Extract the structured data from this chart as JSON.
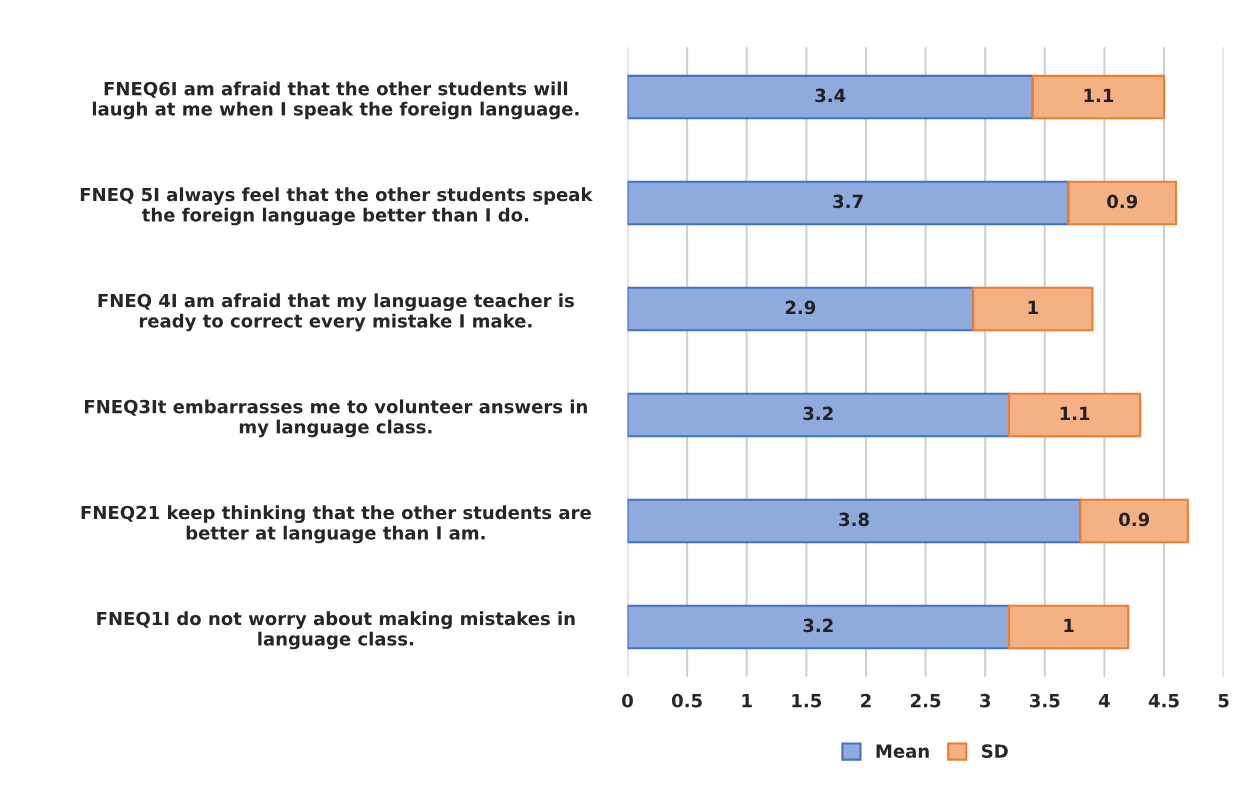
{
  "chart_data": {
    "type": "bar",
    "orientation": "horizontal",
    "stacked": true,
    "categories": [
      "FNEQ6I am afraid that the other students will\nlaugh at me when I speak the foreign language.",
      "FNEQ 5I always feel that the other students speak\nthe foreign language better than I do.",
      "FNEQ 4I am afraid that my language teacher is\nready to correct every mistake I make.",
      "FNEQ3It embarrasses me to volunteer answers in\nmy language class.",
      "FNEQ21 keep thinking that the other students are\nbetter at language than I am.",
      "FNEQ1I do not worry about making mistakes in\nlanguage class."
    ],
    "series": [
      {
        "name": "Mean",
        "color": "#8faadc",
        "values": [
          3.4,
          3.7,
          2.9,
          3.2,
          3.8,
          3.2
        ]
      },
      {
        "name": "SD",
        "color": "#f4b183",
        "values": [
          1.1,
          0.9,
          1,
          1.1,
          0.9,
          1
        ]
      }
    ],
    "xlim": [
      0,
      5
    ],
    "xticks": [
      0,
      0.5,
      1,
      1.5,
      2,
      2.5,
      3,
      3.5,
      4,
      4.5,
      5
    ],
    "data_labels": true,
    "grid": "x",
    "legend": "bottom"
  }
}
